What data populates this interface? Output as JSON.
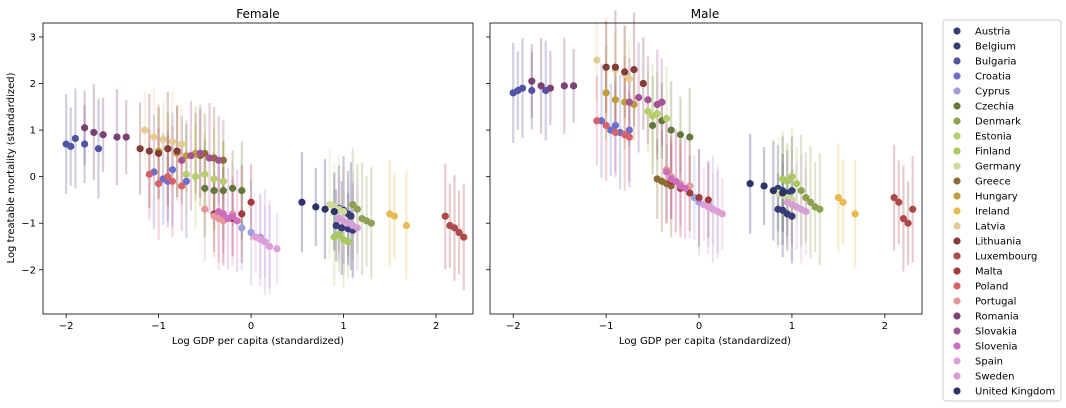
{
  "chart_data": [
    {
      "type": "scatter",
      "title": "Female",
      "xlabel": "Log GDP per capita (standardized)",
      "ylabel": "Log treatable mortality (standardized)",
      "xlim": [
        -2.25,
        2.4
      ],
      "ylim": [
        -2.95,
        3.3
      ],
      "xticks": [
        -2,
        -1,
        0,
        1,
        2
      ],
      "yticks": [
        -2,
        -1,
        0,
        1,
        2,
        3
      ],
      "grid": false,
      "error_bars": "vertical, per point",
      "series": [
        {
          "name": "Austria",
          "x": [
            0.92,
            0.98,
            1.05,
            1.1
          ],
          "y": [
            -1.05,
            -1.1,
            -1.12,
            -1.15
          ]
        },
        {
          "name": "Belgium",
          "x": [
            0.95,
            1.0,
            1.05,
            1.08
          ],
          "y": [
            -0.68,
            -0.72,
            -0.8,
            -0.85
          ]
        },
        {
          "name": "Bulgaria",
          "x": [
            -2.0,
            -1.95,
            -1.9,
            -1.8,
            -1.65
          ],
          "y": [
            0.7,
            0.65,
            0.82,
            0.7,
            0.6
          ]
        },
        {
          "name": "Croatia",
          "x": [
            -1.05,
            -0.95,
            -0.85,
            -0.9,
            -0.7
          ],
          "y": [
            0.1,
            -0.05,
            0.15,
            -0.1,
            -0.1
          ]
        },
        {
          "name": "Cyprus",
          "x": [
            -0.1,
            0.0,
            0.1,
            0.15,
            0.2
          ],
          "y": [
            -1.1,
            -1.2,
            -1.3,
            -1.4,
            -1.5
          ]
        },
        {
          "name": "Czechia",
          "x": [
            -0.5,
            -0.4,
            -0.3,
            -0.2,
            -0.1
          ],
          "y": [
            -0.25,
            -0.3,
            -0.3,
            -0.25,
            -0.3
          ]
        },
        {
          "name": "Denmark",
          "x": [
            1.1,
            1.15,
            1.2,
            1.25,
            1.3
          ],
          "y": [
            -0.6,
            -0.7,
            -0.9,
            -0.95,
            -1.0
          ]
        },
        {
          "name": "Estonia",
          "x": [
            -0.7,
            -0.6,
            -0.5,
            -0.4,
            -0.3
          ],
          "y": [
            0.05,
            0.0,
            0.05,
            -0.05,
            -0.1
          ]
        },
        {
          "name": "Finland",
          "x": [
            0.9,
            0.95,
            1.0,
            1.05
          ],
          "y": [
            -1.3,
            -1.25,
            -1.35,
            -1.4
          ]
        },
        {
          "name": "Germany",
          "x": [
            0.85,
            0.9,
            0.95,
            1.0
          ],
          "y": [
            -0.6,
            -0.65,
            -0.7,
            -0.75
          ]
        },
        {
          "name": "Greece",
          "x": [
            -0.6,
            -0.55,
            -0.5,
            -0.4,
            -0.3
          ],
          "y": [
            0.5,
            0.45,
            0.5,
            0.4,
            0.35
          ]
        },
        {
          "name": "Hungary",
          "x": [
            -1.0,
            -0.9,
            -0.8,
            -0.7,
            -0.6
          ],
          "y": [
            0.55,
            0.6,
            0.5,
            0.45,
            0.5
          ]
        },
        {
          "name": "Ireland",
          "x": [
            1.5,
            1.55,
            1.68
          ],
          "y": [
            -0.8,
            -0.85,
            -1.05
          ]
        },
        {
          "name": "Latvia",
          "x": [
            -1.15,
            -1.05,
            -0.95,
            -0.85,
            -0.75
          ],
          "y": [
            1.0,
            0.85,
            0.8,
            0.75,
            0.7
          ]
        },
        {
          "name": "Lithuania",
          "x": [
            -1.2,
            -1.1,
            -1.0,
            -0.9,
            -0.8
          ],
          "y": [
            0.6,
            0.55,
            0.5,
            0.6,
            0.55
          ]
        },
        {
          "name": "Luxembourg",
          "x": [
            2.1,
            2.15,
            2.2,
            2.25,
            2.3
          ],
          "y": [
            -0.85,
            -1.05,
            -1.1,
            -1.2,
            -1.3
          ]
        },
        {
          "name": "Malta",
          "x": [
            -0.4,
            -0.3,
            -0.2,
            -0.1,
            0.0
          ],
          "y": [
            -0.8,
            -0.85,
            -0.9,
            -0.8,
            -0.55
          ]
        },
        {
          "name": "Poland",
          "x": [
            -1.1,
            -1.0,
            -0.9,
            -0.85,
            -0.75
          ],
          "y": [
            0.05,
            -0.15,
            0.0,
            -0.1,
            -0.2
          ]
        },
        {
          "name": "Portugal",
          "x": [
            -0.5,
            -0.4,
            -0.35,
            -0.3,
            -0.2
          ],
          "y": [
            -0.7,
            -0.85,
            -0.9,
            -0.95,
            -0.8
          ]
        },
        {
          "name": "Romania",
          "x": [
            -1.8,
            -1.7,
            -1.6,
            -1.45,
            -1.35
          ],
          "y": [
            1.05,
            0.95,
            0.9,
            0.85,
            0.85
          ]
        },
        {
          "name": "Slovakia",
          "x": [
            -0.75,
            -0.65,
            -0.55,
            -0.45,
            -0.35
          ],
          "y": [
            0.35,
            0.45,
            0.5,
            0.4,
            0.35
          ]
        },
        {
          "name": "Slovenia",
          "x": [
            -0.35,
            -0.3,
            -0.25,
            -0.2,
            -0.15
          ],
          "y": [
            -0.75,
            -0.8,
            -0.9,
            -0.85,
            -0.95
          ]
        },
        {
          "name": "Spain",
          "x": [
            0.05,
            0.1,
            0.15,
            0.2,
            0.28
          ],
          "y": [
            -1.3,
            -1.35,
            -1.4,
            -1.5,
            -1.55
          ]
        },
        {
          "name": "Sweden",
          "x": [
            0.95,
            1.0,
            1.05,
            1.1,
            1.15
          ],
          "y": [
            -0.9,
            -0.95,
            -1.0,
            -1.05,
            -1.1
          ]
        },
        {
          "name": "United Kingdom",
          "x": [
            0.55,
            0.7,
            0.8,
            0.9
          ],
          "y": [
            -0.55,
            -0.65,
            -0.7,
            -0.75
          ]
        }
      ]
    },
    {
      "type": "scatter",
      "title": "Male",
      "xlabel": "Log GDP per capita (standardized)",
      "ylabel": "",
      "xlim": [
        -2.25,
        2.4
      ],
      "ylim": [
        -2.95,
        3.3
      ],
      "xticks": [
        -2,
        -1,
        0,
        1,
        2
      ],
      "yticks": [
        -2,
        -1,
        0,
        1,
        2,
        3
      ],
      "grid": false,
      "error_bars": "vertical, per point",
      "series": [
        {
          "name": "Austria",
          "x": [
            0.85,
            0.9,
            0.95,
            1.0
          ],
          "y": [
            -0.7,
            -0.72,
            -0.8,
            -0.85
          ]
        },
        {
          "name": "Belgium",
          "x": [
            0.85,
            0.9,
            0.95,
            1.0
          ],
          "y": [
            -0.25,
            -0.3,
            -0.35,
            -0.3
          ]
        },
        {
          "name": "Bulgaria",
          "x": [
            -2.0,
            -1.95,
            -1.9,
            -1.8,
            -1.65
          ],
          "y": [
            1.8,
            1.85,
            1.9,
            1.85,
            1.85
          ]
        },
        {
          "name": "Croatia",
          "x": [
            -1.05,
            -0.95,
            -0.85,
            -0.9,
            -0.75
          ],
          "y": [
            1.2,
            1.0,
            0.95,
            1.1,
            1.0
          ]
        },
        {
          "name": "Cyprus",
          "x": [
            -0.05,
            0.0,
            0.1,
            0.15,
            0.2
          ],
          "y": [
            -0.45,
            -0.55,
            -0.6,
            -0.7,
            -0.75
          ]
        },
        {
          "name": "Czechia",
          "x": [
            -0.5,
            -0.4,
            -0.3,
            -0.2,
            -0.1
          ],
          "y": [
            1.1,
            1.2,
            1.0,
            0.9,
            0.85
          ]
        },
        {
          "name": "Denmark",
          "x": [
            1.1,
            1.15,
            1.2,
            1.25,
            1.3
          ],
          "y": [
            -0.3,
            -0.45,
            -0.55,
            -0.65,
            -0.7
          ]
        },
        {
          "name": "Estonia",
          "x": [
            -0.55,
            -0.5,
            -0.45,
            -0.35
          ],
          "y": [
            1.4,
            1.3,
            1.35,
            1.25
          ]
        },
        {
          "name": "Finland",
          "x": [
            0.9,
            0.95,
            1.0,
            1.05
          ],
          "y": [
            -0.05,
            -0.1,
            0.0,
            -0.15
          ]
        },
        {
          "name": "Germany",
          "x": [
            0.85,
            0.9,
            0.95,
            1.0
          ],
          "y": [
            -0.35,
            -0.4,
            -0.45,
            -0.5
          ]
        },
        {
          "name": "Greece",
          "x": [
            -0.45,
            -0.4,
            -0.35,
            -0.3
          ],
          "y": [
            -0.05,
            -0.1,
            -0.15,
            -0.2
          ]
        },
        {
          "name": "Hungary",
          "x": [
            -1.0,
            -0.9,
            -0.8,
            -0.7
          ],
          "y": [
            1.8,
            1.65,
            1.6,
            1.55
          ]
        },
        {
          "name": "Ireland",
          "x": [
            1.5,
            1.55,
            1.68
          ],
          "y": [
            -0.45,
            -0.55,
            -0.8
          ]
        },
        {
          "name": "Latvia",
          "x": [
            -1.1,
            -1.0,
            -0.9,
            -0.8,
            -0.75
          ],
          "y": [
            2.5,
            2.35,
            2.3,
            2.2,
            2.1
          ]
        },
        {
          "name": "Lithuania",
          "x": [
            -1.0,
            -0.9,
            -0.8,
            -0.7,
            -0.6
          ],
          "y": [
            2.35,
            2.35,
            2.25,
            2.3,
            2.0
          ]
        },
        {
          "name": "Luxembourg",
          "x": [
            2.1,
            2.15,
            2.2,
            2.25,
            2.3
          ],
          "y": [
            -0.45,
            -0.55,
            -0.9,
            -1.0,
            -0.7
          ]
        },
        {
          "name": "Malta",
          "x": [
            -0.3,
            -0.2,
            -0.1,
            0.0,
            0.1
          ],
          "y": [
            -0.1,
            -0.25,
            -0.35,
            -0.45,
            -0.5
          ]
        },
        {
          "name": "Poland",
          "x": [
            -1.1,
            -1.0,
            -0.9,
            -0.8,
            -0.75
          ],
          "y": [
            1.2,
            1.1,
            0.95,
            0.9,
            0.85
          ]
        },
        {
          "name": "Portugal",
          "x": [
            -0.35,
            -0.3,
            -0.25,
            -0.2,
            -0.1
          ],
          "y": [
            0.15,
            0.0,
            -0.1,
            -0.15,
            -0.2
          ]
        },
        {
          "name": "Romania",
          "x": [
            -1.8,
            -1.7,
            -1.6,
            -1.45,
            -1.35
          ],
          "y": [
            2.05,
            1.95,
            1.9,
            1.95,
            1.95
          ]
        },
        {
          "name": "Slovakia",
          "x": [
            -0.75,
            -0.65,
            -0.55,
            -0.45,
            -0.4
          ],
          "y": [
            1.6,
            1.7,
            1.65,
            1.55,
            1.6
          ]
        },
        {
          "name": "Slovenia",
          "x": [
            -0.35,
            -0.3,
            -0.25,
            -0.2,
            -0.15
          ],
          "y": [
            0.1,
            -0.05,
            -0.1,
            -0.2,
            -0.25
          ]
        },
        {
          "name": "Spain",
          "x": [
            0.05,
            0.1,
            0.15,
            0.2,
            0.25
          ],
          "y": [
            -0.6,
            -0.65,
            -0.7,
            -0.75,
            -0.8
          ]
        },
        {
          "name": "Sweden",
          "x": [
            0.95,
            1.0,
            1.05,
            1.1,
            1.15
          ],
          "y": [
            -0.55,
            -0.6,
            -0.65,
            -0.7,
            -0.75
          ]
        },
        {
          "name": "United Kingdom",
          "x": [
            0.55,
            0.7,
            0.8,
            0.9
          ],
          "y": [
            -0.15,
            -0.2,
            -0.3,
            -0.35
          ]
        }
      ]
    }
  ],
  "legend": {
    "placement": "right",
    "entries": [
      "Austria",
      "Belgium",
      "Bulgaria",
      "Croatia",
      "Cyprus",
      "Czechia",
      "Denmark",
      "Estonia",
      "Finland",
      "Germany",
      "Greece",
      "Hungary",
      "Ireland",
      "Latvia",
      "Lithuania",
      "Luxembourg",
      "Malta",
      "Poland",
      "Portugal",
      "Romania",
      "Slovakia",
      "Slovenia",
      "Spain",
      "Sweden",
      "United Kingdom"
    ]
  },
  "colors": {
    "Austria": "#393b79",
    "Belgium": "#333f73",
    "Bulgaria": "#5254a3",
    "Croatia": "#6b6ecf",
    "Cyprus": "#9c9ede",
    "Czechia": "#637939",
    "Denmark": "#8ca252",
    "Estonia": "#b5cf6b",
    "Finland": "#a9c95f",
    "Germany": "#cedb9c",
    "Greece": "#8c6d31",
    "Hungary": "#bd9e39",
    "Ireland": "#e7ba52",
    "Latvia": "#e7cb94",
    "Lithuania": "#843c39",
    "Luxembourg": "#ad494a",
    "Malta": "#a23b3b",
    "Poland": "#d6616b",
    "Portugal": "#e7969c",
    "Romania": "#7b4173",
    "Slovakia": "#a55194",
    "Slovenia": "#ce6dbd",
    "Spain": "#de9ed6",
    "Sweden": "#d39fd4",
    "United Kingdom": "#2e3468"
  }
}
